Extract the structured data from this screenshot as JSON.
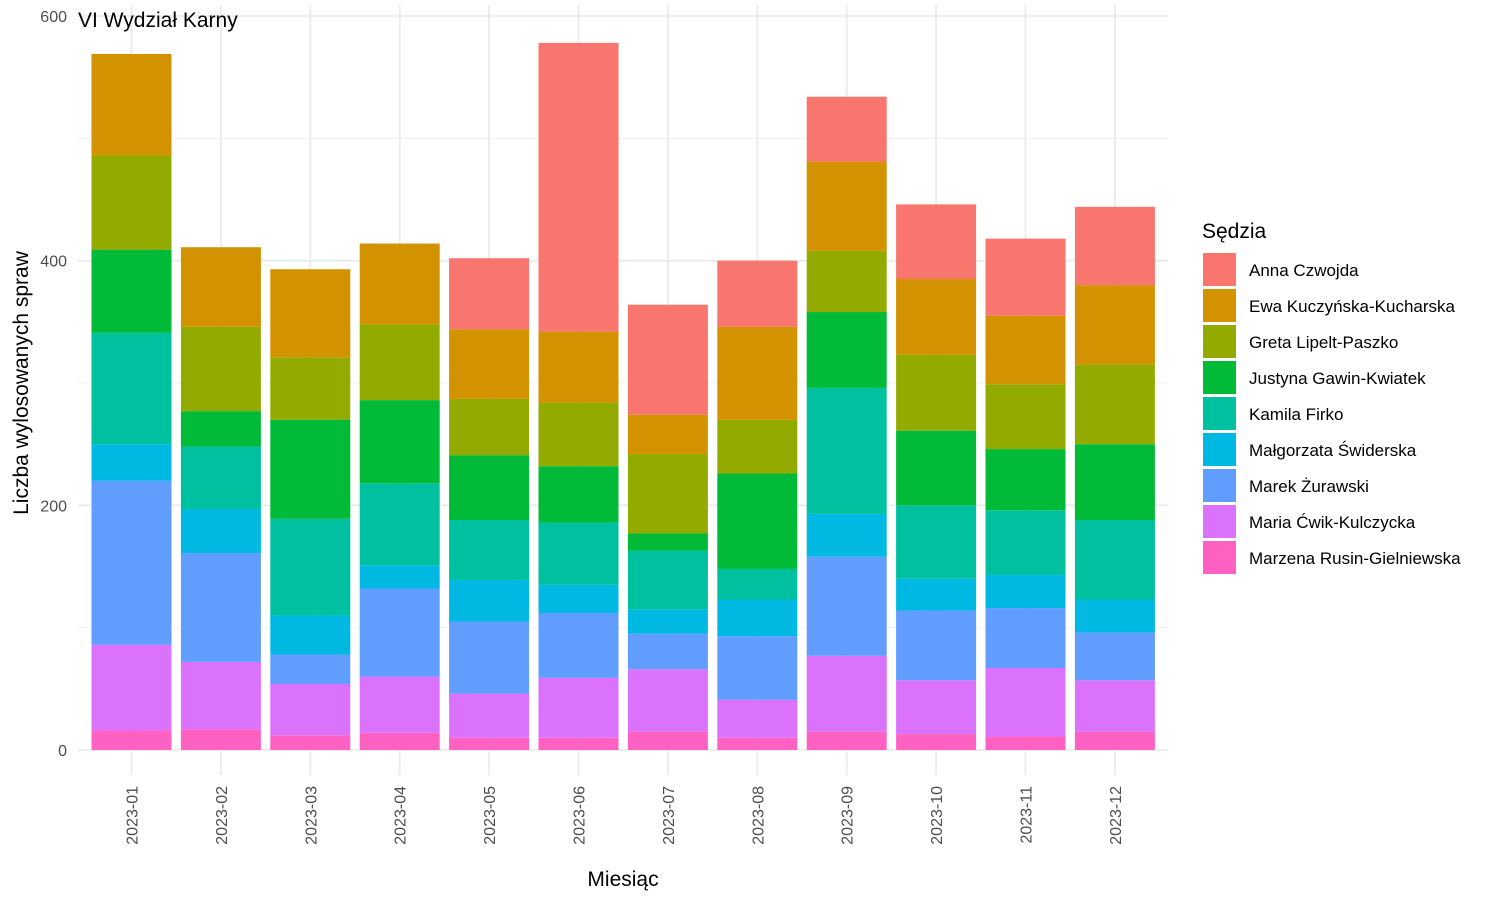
{
  "chart_data": {
    "type": "bar",
    "stacked": true,
    "title": "VI Wydział Karny",
    "xlabel": "Miesiąc",
    "ylabel": "Liczba wylosowanych spraw",
    "ylim": [
      0,
      600
    ],
    "yticks": [
      0,
      200,
      400,
      600
    ],
    "grid": true,
    "legend_position": "right",
    "legend_title": "Sędzia",
    "categories": [
      "2023-01",
      "2023-02",
      "2023-03",
      "2023-04",
      "2023-05",
      "2023-06",
      "2023-07",
      "2023-08",
      "2023-09",
      "2023-10",
      "2023-11",
      "2023-12"
    ],
    "series": [
      {
        "name": "Marzena Rusin-Gielniewska",
        "color": "#FF61C3",
        "values": [
          16,
          17,
          12,
          14,
          10,
          10,
          15,
          10,
          15,
          13,
          11,
          15
        ]
      },
      {
        "name": "Maria Ćwik-Kulczycka",
        "color": "#DB72FB",
        "values": [
          70,
          55,
          42,
          46,
          36,
          49,
          51,
          31,
          62,
          44,
          56,
          42
        ]
      },
      {
        "name": "Marek Żurawski",
        "color": "#619CFF",
        "values": [
          134,
          89,
          24,
          72,
          59,
          53,
          29,
          52,
          81,
          57,
          49,
          39
        ]
      },
      {
        "name": "Małgorzata Świderska",
        "color": "#00B9E3",
        "values": [
          30,
          36,
          32,
          19,
          34,
          23,
          20,
          30,
          35,
          26,
          27,
          27
        ]
      },
      {
        "name": "Kamila Firko",
        "color": "#00C19F",
        "values": [
          91,
          51,
          79,
          67,
          49,
          51,
          48,
          25,
          103,
          60,
          53,
          65
        ]
      },
      {
        "name": "Justyna Gawin-Kwiatek",
        "color": "#00BA38",
        "values": [
          68,
          29,
          81,
          68,
          53,
          46,
          14,
          78,
          62,
          61,
          50,
          62
        ]
      },
      {
        "name": "Greta Lipelt-Paszko",
        "color": "#93AA00",
        "values": [
          77,
          69,
          51,
          62,
          46,
          52,
          65,
          44,
          50,
          62,
          53,
          65
        ]
      },
      {
        "name": "Ewa Kuczyńska-Kucharska",
        "color": "#D39200",
        "values": [
          83,
          65,
          72,
          66,
          57,
          58,
          32,
          76,
          73,
          62,
          56,
          65
        ]
      },
      {
        "name": "Anna Czwojda",
        "color": "#F8766D",
        "values": [
          0,
          0,
          0,
          0,
          58,
          236,
          90,
          54,
          53,
          61,
          63,
          64
        ]
      }
    ],
    "legend_order": [
      "Anna Czwojda",
      "Ewa Kuczyńska-Kucharska",
      "Greta Lipelt-Paszko",
      "Justyna Gawin-Kwiatek",
      "Kamila Firko",
      "Małgorzata Świderska",
      "Marek Żurawski",
      "Maria Ćwik-Kulczycka",
      "Marzena Rusin-Gielniewska"
    ]
  }
}
